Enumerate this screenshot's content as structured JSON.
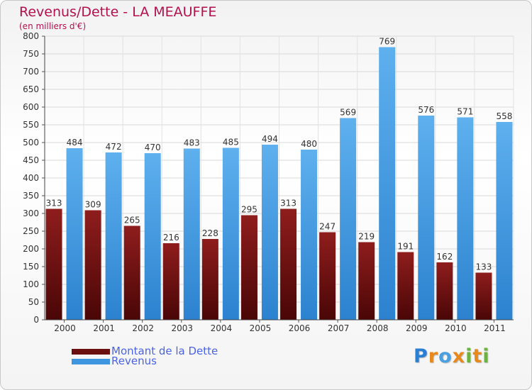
{
  "header": {
    "title": "Revenus/Dette - LA MEAUFFE",
    "subtitle": "(en milliers d'€)"
  },
  "chart_data": {
    "type": "bar",
    "title": "Revenus/Dette - LA MEAUFFE",
    "ylabel": "(en milliers d'€)",
    "ylim": [
      0,
      800
    ],
    "yticks": [
      0,
      50,
      100,
      150,
      200,
      250,
      300,
      350,
      400,
      450,
      500,
      550,
      600,
      650,
      700,
      750,
      800
    ],
    "grid": true,
    "legend_position": "bottom-left",
    "categories": [
      "2000",
      "2001",
      "2002",
      "2003",
      "2004",
      "2005",
      "2006",
      "2007",
      "2008",
      "2009",
      "2010",
      "2011"
    ],
    "series": [
      {
        "name": "Montant de la Dette",
        "color": "#7a1414",
        "values": [
          313,
          309,
          265,
          216,
          228,
          295,
          313,
          247,
          219,
          191,
          162,
          133
        ]
      },
      {
        "name": "Revenus",
        "color": "#4aa3e6",
        "values": [
          484,
          472,
          470,
          483,
          485,
          494,
          480,
          569,
          769,
          576,
          571,
          558
        ]
      }
    ]
  },
  "legend": {
    "items": [
      {
        "label": "Montant de la Dette",
        "color": "#6b0f0f"
      },
      {
        "label": "Revenus",
        "color": "#3d96df"
      }
    ]
  },
  "logo": {
    "letters": [
      "P",
      "r",
      "o",
      "x",
      "i",
      "t",
      "i"
    ],
    "colors": [
      "#2a7fd4",
      "#e8891c",
      "#4a9fe0",
      "#e8891c",
      "#6cb33e",
      "#e8891c",
      "#6cb33e"
    ]
  }
}
